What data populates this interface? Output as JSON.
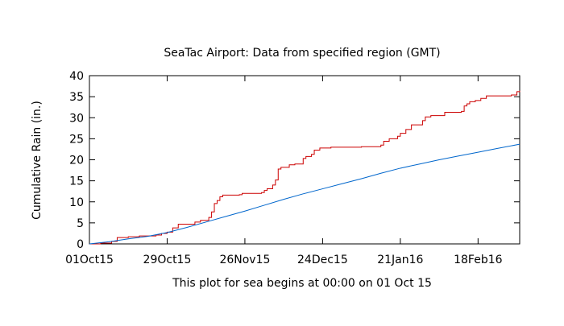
{
  "chart_data": {
    "type": "line",
    "title": "SeaTac Airport:  Data from specified region (GMT)",
    "xlabel": "This plot for sea begins at 00:00 on 01 Oct 15",
    "ylabel": "Cumulative Rain (in.)",
    "ylim": [
      0,
      40
    ],
    "yticks": [
      0,
      5,
      10,
      15,
      20,
      25,
      30,
      35,
      40
    ],
    "xlim": [
      "2015-10-01",
      "2016-03-04"
    ],
    "xticks": [
      {
        "date": "2015-10-01",
        "label": "01Oct15"
      },
      {
        "date": "2015-10-29",
        "label": "29Oct15"
      },
      {
        "date": "2015-11-26",
        "label": "26Nov15"
      },
      {
        "date": "2015-12-24",
        "label": "24Dec15"
      },
      {
        "date": "2016-01-21",
        "label": "21Jan16"
      },
      {
        "date": "2016-02-18",
        "label": "18Feb16"
      }
    ],
    "grid": false,
    "legend": "none",
    "series": [
      {
        "color": "#cc0000",
        "step": true,
        "points": [
          [
            "2015-10-01",
            0.0
          ],
          [
            "2015-10-05",
            0.2
          ],
          [
            "2015-10-09",
            0.6
          ],
          [
            "2015-10-11",
            1.5
          ],
          [
            "2015-10-15",
            1.7
          ],
          [
            "2015-10-19",
            1.9
          ],
          [
            "2015-10-25",
            2.1
          ],
          [
            "2015-10-27",
            2.5
          ],
          [
            "2015-10-29",
            2.8
          ],
          [
            "2015-10-31",
            3.8
          ],
          [
            "2015-11-02",
            4.7
          ],
          [
            "2015-11-08",
            5.2
          ],
          [
            "2015-11-10",
            5.6
          ],
          [
            "2015-11-13",
            6.3
          ],
          [
            "2015-11-14",
            7.6
          ],
          [
            "2015-11-15",
            9.6
          ],
          [
            "2015-11-16",
            10.3
          ],
          [
            "2015-11-17",
            11.2
          ],
          [
            "2015-11-18",
            11.6
          ],
          [
            "2015-11-24",
            11.7
          ],
          [
            "2015-11-25",
            12.0
          ],
          [
            "2015-12-02",
            12.2
          ],
          [
            "2015-12-03",
            12.7
          ],
          [
            "2015-12-04",
            13.1
          ],
          [
            "2015-12-06",
            14.0
          ],
          [
            "2015-12-07",
            15.2
          ],
          [
            "2015-12-08",
            17.8
          ],
          [
            "2015-12-09",
            18.2
          ],
          [
            "2015-12-12",
            18.8
          ],
          [
            "2015-12-14",
            19.0
          ],
          [
            "2015-12-17",
            20.3
          ],
          [
            "2015-12-18",
            20.8
          ],
          [
            "2015-12-20",
            21.3
          ],
          [
            "2015-12-21",
            22.3
          ],
          [
            "2015-12-23",
            22.8
          ],
          [
            "2015-12-27",
            23.0
          ],
          [
            "2016-01-07",
            23.1
          ],
          [
            "2016-01-14",
            23.5
          ],
          [
            "2016-01-15",
            24.4
          ],
          [
            "2016-01-17",
            25.0
          ],
          [
            "2016-01-20",
            25.6
          ],
          [
            "2016-01-21",
            26.3
          ],
          [
            "2016-01-23",
            27.2
          ],
          [
            "2016-01-25",
            28.3
          ],
          [
            "2016-01-29",
            29.3
          ],
          [
            "2016-01-30",
            30.2
          ],
          [
            "2016-02-01",
            30.5
          ],
          [
            "2016-02-06",
            31.3
          ],
          [
            "2016-02-12",
            31.5
          ],
          [
            "2016-02-13",
            32.8
          ],
          [
            "2016-02-14",
            33.3
          ],
          [
            "2016-02-15",
            33.8
          ],
          [
            "2016-02-17",
            34.1
          ],
          [
            "2016-02-19",
            34.6
          ],
          [
            "2016-02-21",
            35.2
          ],
          [
            "2016-03-01",
            35.4
          ],
          [
            "2016-03-03",
            36.2
          ],
          [
            "2016-03-04",
            36.4
          ]
        ]
      },
      {
        "color": "#0066cc",
        "step": false,
        "points": [
          [
            "2015-10-01",
            0.0
          ],
          [
            "2015-10-08",
            0.5
          ],
          [
            "2015-10-15",
            1.2
          ],
          [
            "2015-10-22",
            1.8
          ],
          [
            "2015-10-29",
            2.7
          ],
          [
            "2015-11-05",
            3.9
          ],
          [
            "2015-11-12",
            5.2
          ],
          [
            "2015-11-19",
            6.5
          ],
          [
            "2015-11-26",
            7.8
          ],
          [
            "2015-12-03",
            9.2
          ],
          [
            "2015-12-10",
            10.6
          ],
          [
            "2015-12-17",
            11.9
          ],
          [
            "2015-12-24",
            13.1
          ],
          [
            "2015-12-31",
            14.3
          ],
          [
            "2016-01-07",
            15.5
          ],
          [
            "2016-01-14",
            16.8
          ],
          [
            "2016-01-21",
            18.0
          ],
          [
            "2016-01-28",
            19.0
          ],
          [
            "2016-02-04",
            20.0
          ],
          [
            "2016-02-11",
            20.9
          ],
          [
            "2016-02-18",
            21.8
          ],
          [
            "2016-02-25",
            22.7
          ],
          [
            "2016-03-04",
            23.7
          ]
        ]
      }
    ]
  }
}
